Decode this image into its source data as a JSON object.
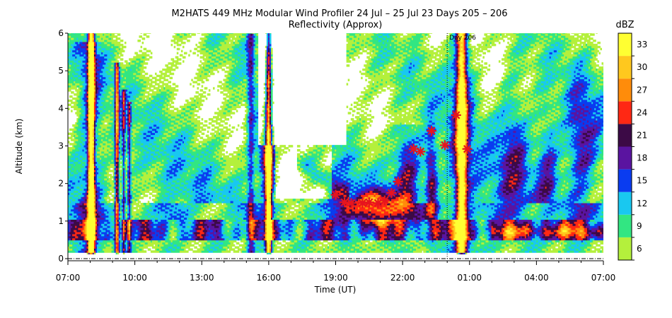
{
  "chart_data": {
    "type": "heatmap",
    "title": "M2HATS 449 MHz Modular Wind Profiler  24 Jul – 25 Jul 23 Days 205 – 206",
    "subtitle": "Reflectivity (Approx)",
    "xlabel": "Time (UT)",
    "ylabel": "Altitude (km)",
    "x_ticks": [
      "07:00",
      "10:00",
      "13:00",
      "16:00",
      "19:00",
      "22:00",
      "01:00",
      "04:00",
      "07:00"
    ],
    "x_range_hours": [
      0,
      24
    ],
    "y_ticks": [
      "0",
      "1",
      "2",
      "3",
      "4",
      "5",
      "6"
    ],
    "ylim": [
      0,
      6
    ],
    "day_marker": {
      "label": "Day 206",
      "x_hours": 17
    },
    "colorbar": {
      "unit": "dBZ",
      "labels": [
        "6",
        "9",
        "12",
        "15",
        "18",
        "21",
        "24",
        "27",
        "30",
        "33"
      ],
      "colors": [
        "#b4f03c",
        "#32e682",
        "#19c8f0",
        "#0a3cf0",
        "#5a14a0",
        "#3c0a46",
        "#ff2814",
        "#ff8c0a",
        "#ffc81e",
        "#ffff32"
      ]
    },
    "colors": {
      "background": "#ffffff",
      "marker": "#e6141e",
      "day_line": "#000000"
    },
    "markers_star": [
      {
        "x_hours": 12.0,
        "y": 1.7
      },
      {
        "x_hours": 12.4,
        "y": 1.5
      },
      {
        "x_hours": 12.7,
        "y": 1.48
      },
      {
        "x_hours": 13.2,
        "y": 1.48
      },
      {
        "x_hours": 13.5,
        "y": 1.5
      },
      {
        "x_hours": 13.9,
        "y": 1.48
      },
      {
        "x_hours": 14.2,
        "y": 1.55
      },
      {
        "x_hours": 14.5,
        "y": 1.75
      },
      {
        "x_hours": 14.8,
        "y": 2.05
      },
      {
        "x_hours": 15.5,
        "y": 2.92
      },
      {
        "x_hours": 15.8,
        "y": 2.85
      },
      {
        "x_hours": 16.3,
        "y": 3.4
      },
      {
        "x_hours": 16.9,
        "y": 3.02
      },
      {
        "x_hours": 17.4,
        "y": 3.82
      },
      {
        "x_hours": 17.9,
        "y": 2.92
      }
    ]
  }
}
